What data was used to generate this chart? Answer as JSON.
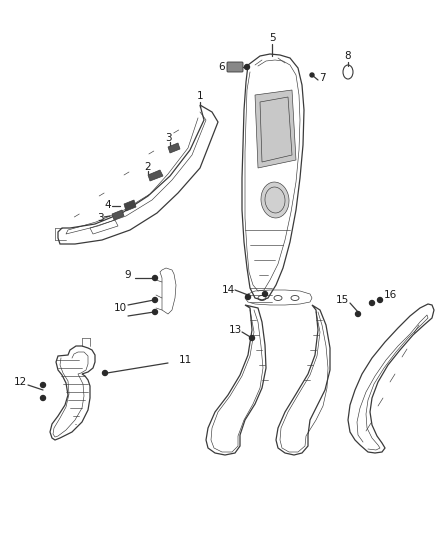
{
  "background_color": "#ffffff",
  "fig_width": 4.38,
  "fig_height": 5.33,
  "dpi": 100,
  "line_color": "#3a3a3a",
  "label_color": "#1a1a1a",
  "label_fontsize": 7.5,
  "lw_main": 0.9,
  "lw_thin": 0.45
}
